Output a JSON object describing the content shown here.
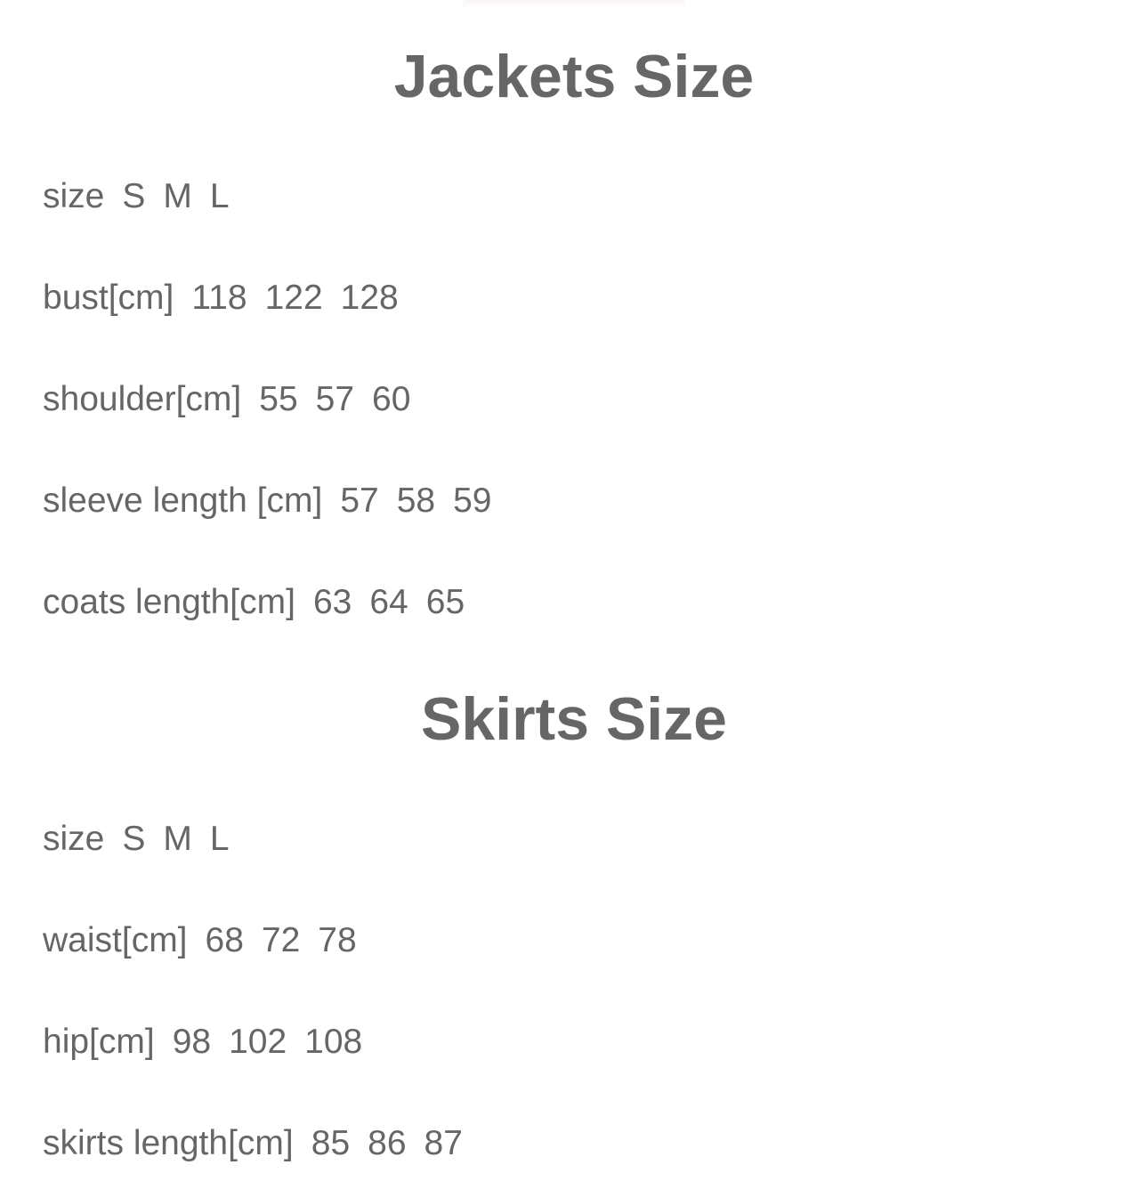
{
  "jackets": {
    "title": "Jackets Size",
    "rows": [
      {
        "label": "size",
        "values": [
          "S",
          "M",
          "L"
        ]
      },
      {
        "label": "bust[cm]",
        "values": [
          "118",
          "122",
          "128"
        ]
      },
      {
        "label": "shoulder[cm]",
        "values": [
          "55",
          "57",
          "60"
        ]
      },
      {
        "label": "sleeve length [cm]",
        "values": [
          "57",
          "58",
          "59"
        ]
      },
      {
        "label": "coats length[cm]",
        "values": [
          "63",
          "64",
          "65"
        ]
      }
    ]
  },
  "skirts": {
    "title": "Skirts Size",
    "rows": [
      {
        "label": "size",
        "values": [
          "S",
          "M",
          "L"
        ]
      },
      {
        "label": "waist[cm]",
        "values": [
          "68",
          "72",
          "78"
        ]
      },
      {
        "label": "hip[cm]",
        "values": [
          "98",
          "102",
          "108"
        ]
      },
      {
        "label": "skirts length[cm]",
        "values": [
          "85",
          "86",
          "87"
        ]
      }
    ]
  }
}
